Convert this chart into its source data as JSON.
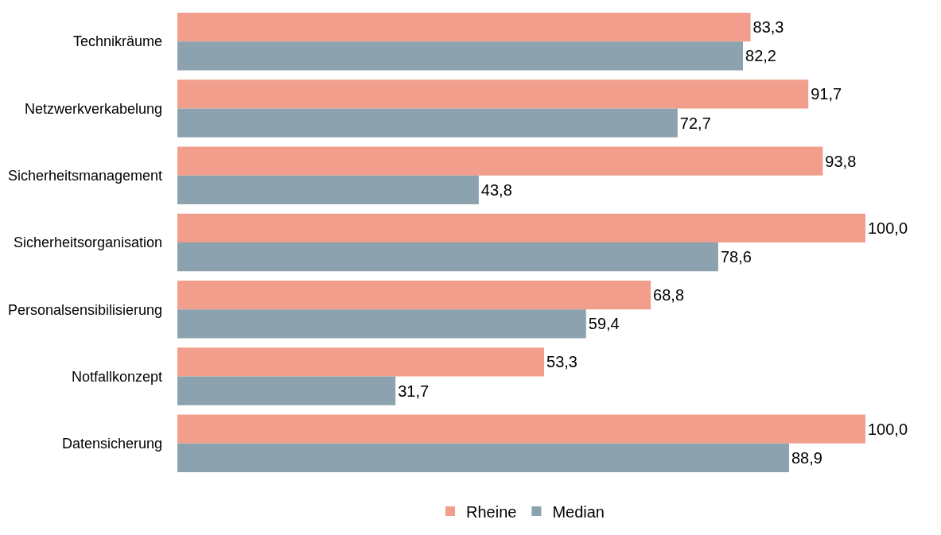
{
  "chart_data": {
    "type": "bar",
    "orientation": "horizontal",
    "categories": [
      "Technikräume",
      "Netzwerkverkabelung",
      "Sicherheitsmanagement",
      "Sicherheitsorganisation",
      "Personalsensibilisierung",
      "Notfallkonzept",
      "Datensicherung"
    ],
    "series": [
      {
        "name": "Rheine",
        "color": "#f19e8c",
        "values": [
          83.3,
          91.7,
          93.8,
          100.0,
          68.8,
          53.3,
          100.0
        ],
        "value_labels": [
          "83,3",
          "91,7",
          "93,8",
          "100,0",
          "68,8",
          "53,3",
          "100,0"
        ]
      },
      {
        "name": "Median",
        "color": "#8ca2ae",
        "values": [
          82.2,
          72.7,
          43.8,
          78.6,
          59.4,
          31.7,
          88.9
        ],
        "value_labels": [
          "82,2",
          "72,7",
          "43,8",
          "78,6",
          "59,4",
          "31,7",
          "88,9"
        ]
      }
    ],
    "legend": "bottom",
    "tick_labels": "y"
  }
}
